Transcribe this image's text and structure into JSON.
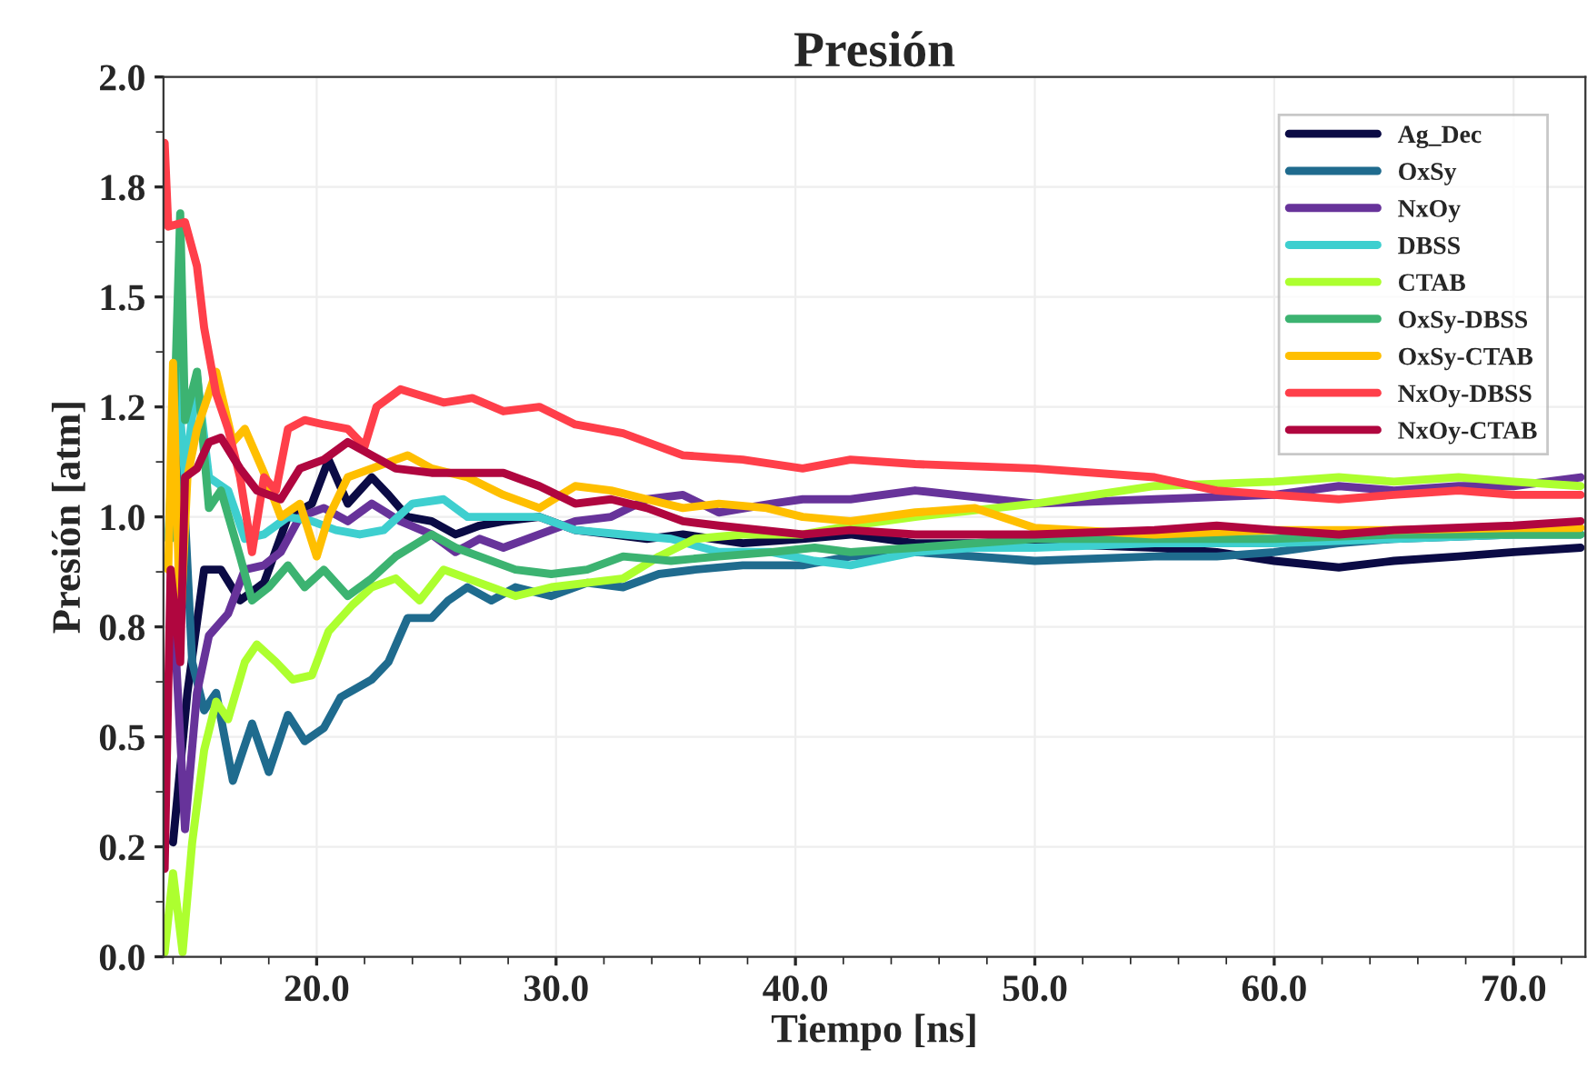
{
  "chart_data": {
    "type": "line",
    "title": "Presión",
    "xlabel": "Tiempo [ns]",
    "ylabel": "Presión [atm]",
    "xlim": [
      13.6,
      73.0
    ],
    "xticks": [
      {
        "value": 20,
        "label": "20.0"
      },
      {
        "value": 30,
        "label": "30.0"
      },
      {
        "value": 40,
        "label": "40.0"
      },
      {
        "value": 50,
        "label": "50.0"
      },
      {
        "value": 60,
        "label": "60.0"
      },
      {
        "value": 70,
        "label": "70.0"
      }
    ],
    "ylim": [
      0,
      2.0
    ],
    "yticks": [
      {
        "value": 0,
        "label": "0.0"
      },
      {
        "value": 0.25,
        "label": "0.2"
      },
      {
        "value": 0.5,
        "label": "0.5"
      },
      {
        "value": 0.75,
        "label": "0.8"
      },
      {
        "value": 1.0,
        "label": "1.0"
      },
      {
        "value": 1.25,
        "label": "1.2"
      },
      {
        "value": 1.5,
        "label": "1.5"
      },
      {
        "value": 1.75,
        "label": "1.8"
      },
      {
        "value": 2.0,
        "label": "2.0"
      }
    ],
    "grid": true,
    "legend": "top right",
    "series": [
      {
        "name": "Ag_Dec",
        "color": "#0b0b45",
        "x": [
          14.0,
          14.6,
          15.3,
          16.0,
          16.8,
          17.8,
          18.8,
          19.8,
          20.5,
          21.3,
          22.3,
          23.0,
          23.8,
          24.8,
          25.8,
          26.8,
          27.8,
          29.3,
          30.8,
          32.3,
          33.8,
          35.3,
          37.8,
          40.3,
          42.3,
          45,
          50,
          55,
          57.6,
          60,
          62.7,
          65,
          67.7,
          70,
          72.8
        ],
        "values": [
          0.26,
          0.6,
          0.88,
          0.88,
          0.81,
          0.85,
          1.0,
          1.03,
          1.13,
          1.03,
          1.09,
          1.05,
          1.0,
          0.99,
          0.96,
          0.98,
          0.99,
          1.0,
          0.97,
          0.96,
          0.95,
          0.96,
          0.94,
          0.95,
          0.96,
          0.94,
          0.94,
          0.93,
          0.92,
          0.9,
          0.885,
          0.9,
          0.91,
          0.92,
          0.93
        ]
      },
      {
        "name": "OxSy",
        "color": "#1f6b8e",
        "x": [
          13.8,
          14.3,
          14.8,
          15.3,
          15.8,
          16.5,
          17.3,
          18.0,
          18.8,
          19.5,
          20.3,
          21.0,
          22.3,
          23.0,
          23.8,
          24.8,
          25.5,
          26.3,
          27.3,
          28.3,
          29.8,
          31.3,
          32.8,
          34.3,
          35.8,
          37.8,
          40.3,
          42.3,
          45,
          50,
          55,
          57.6,
          60,
          62.7,
          65,
          70,
          72.8
        ],
        "values": [
          0.95,
          1.22,
          0.67,
          0.56,
          0.6,
          0.4,
          0.53,
          0.42,
          0.55,
          0.49,
          0.52,
          0.59,
          0.63,
          0.67,
          0.77,
          0.77,
          0.81,
          0.84,
          0.81,
          0.84,
          0.82,
          0.85,
          0.84,
          0.87,
          0.88,
          0.89,
          0.89,
          0.91,
          0.92,
          0.9,
          0.91,
          0.91,
          0.92,
          0.94,
          0.95,
          0.96,
          0.96
        ]
      },
      {
        "name": "NxOy",
        "color": "#67339a",
        "x": [
          14.0,
          14.5,
          15.0,
          15.5,
          16.3,
          17.0,
          17.8,
          18.5,
          19.3,
          20.3,
          21.3,
          22.3,
          23.5,
          24.8,
          25.8,
          26.8,
          27.8,
          29.3,
          30.8,
          32.3,
          33.8,
          35.3,
          36.8,
          39.0,
          40.3,
          42.3,
          45,
          50,
          55,
          60,
          62.7,
          65,
          67.7,
          70,
          72.8
        ],
        "values": [
          0.81,
          0.29,
          0.6,
          0.73,
          0.78,
          0.88,
          0.89,
          0.92,
          1.0,
          1.02,
          0.99,
          1.03,
          0.99,
          0.96,
          0.92,
          0.95,
          0.93,
          0.96,
          0.99,
          1.0,
          1.04,
          1.05,
          1.01,
          1.03,
          1.04,
          1.04,
          1.06,
          1.03,
          1.04,
          1.05,
          1.07,
          1.06,
          1.07,
          1.07,
          1.09
        ]
      },
      {
        "name": "DBSS",
        "color": "#3ecfcf",
        "x": [
          13.8,
          14.15,
          14.5,
          15.0,
          15.5,
          16.3,
          17.0,
          17.8,
          18.8,
          19.8,
          20.8,
          21.8,
          22.8,
          24.0,
          25.3,
          26.3,
          27.8,
          29.3,
          30.8,
          32.8,
          34.8,
          36.8,
          39.0,
          40.8,
          42.3,
          45,
          47.5,
          50,
          55,
          60,
          65,
          70,
          72.8
        ],
        "values": [
          0.95,
          1.33,
          1.09,
          1.32,
          1.09,
          1.06,
          0.95,
          0.96,
          1.0,
          0.99,
          0.97,
          0.96,
          0.97,
          1.03,
          1.04,
          1.0,
          1.0,
          1.0,
          0.97,
          0.96,
          0.95,
          0.92,
          0.92,
          0.9,
          0.89,
          0.92,
          0.93,
          0.93,
          0.94,
          0.94,
          0.95,
          0.96,
          0.96
        ]
      },
      {
        "name": "CTAB",
        "color": "#adff2f",
        "x": [
          13.65,
          14.0,
          14.4,
          14.8,
          15.3,
          15.8,
          16.3,
          17.0,
          17.5,
          18.3,
          19.0,
          19.8,
          20.5,
          21.5,
          22.3,
          23.3,
          24.3,
          25.3,
          26.3,
          27.3,
          28.3,
          29.8,
          31.3,
          32.8,
          34.3,
          35.8,
          37.8,
          40.3,
          42.3,
          45,
          50,
          55,
          60,
          62.7,
          65,
          67.7,
          70,
          72.8
        ],
        "values": [
          0.01,
          0.19,
          0.01,
          0.26,
          0.47,
          0.58,
          0.54,
          0.67,
          0.71,
          0.67,
          0.63,
          0.64,
          0.74,
          0.8,
          0.84,
          0.86,
          0.81,
          0.88,
          0.86,
          0.84,
          0.82,
          0.84,
          0.85,
          0.86,
          0.91,
          0.95,
          0.96,
          0.96,
          0.98,
          1.0,
          1.03,
          1.07,
          1.08,
          1.09,
          1.08,
          1.09,
          1.08,
          1.07
        ]
      },
      {
        "name": "OxSy-DBSS",
        "color": "#3cb371",
        "x": [
          13.9,
          14.3,
          14.5,
          15.0,
          15.5,
          16.0,
          16.8,
          17.3,
          18.0,
          18.8,
          19.5,
          20.3,
          21.3,
          22.3,
          23.3,
          24.8,
          25.8,
          26.8,
          28.3,
          29.8,
          31.3,
          32.8,
          34.8,
          36.8,
          39.0,
          40.8,
          42.3,
          45,
          50,
          55,
          57.6,
          60,
          65,
          70,
          72.8
        ],
        "values": [
          0.95,
          1.69,
          1.22,
          1.33,
          1.02,
          1.06,
          0.91,
          0.81,
          0.84,
          0.89,
          0.84,
          0.88,
          0.82,
          0.86,
          0.91,
          0.96,
          0.93,
          0.91,
          0.88,
          0.87,
          0.88,
          0.91,
          0.9,
          0.91,
          0.92,
          0.93,
          0.92,
          0.93,
          0.95,
          0.95,
          0.95,
          0.95,
          0.96,
          0.96,
          0.96
        ]
      },
      {
        "name": "OxSy-CTAB",
        "color": "#ffbf00",
        "x": [
          13.8,
          14.0,
          14.3,
          14.6,
          15.0,
          15.8,
          16.5,
          17.0,
          17.8,
          18.5,
          19.3,
          20.0,
          20.5,
          21.3,
          22.3,
          23.8,
          24.8,
          26.3,
          27.8,
          29.3,
          30.8,
          32.3,
          33.8,
          35.3,
          36.8,
          38.8,
          40.3,
          42.3,
          45,
          47.5,
          50,
          55,
          60,
          62.7,
          65,
          70,
          72.8
        ],
        "values": [
          0.88,
          1.35,
          0.74,
          1.09,
          1.2,
          1.33,
          1.17,
          1.2,
          1.1,
          1.0,
          1.03,
          0.91,
          1.0,
          1.09,
          1.11,
          1.14,
          1.11,
          1.09,
          1.05,
          1.02,
          1.07,
          1.06,
          1.04,
          1.02,
          1.03,
          1.02,
          1.0,
          0.99,
          1.01,
          1.02,
          0.975,
          0.96,
          0.97,
          0.97,
          0.97,
          0.975,
          0.975
        ]
      },
      {
        "name": "NxOy-DBSS",
        "color": "#ff3f4a",
        "x": [
          13.65,
          13.8,
          14.5,
          15.0,
          15.3,
          15.8,
          16.3,
          16.8,
          17.3,
          17.8,
          18.3,
          18.8,
          19.5,
          20.3,
          21.3,
          22.0,
          22.5,
          23.5,
          25.3,
          26.5,
          27.8,
          29.3,
          30.8,
          32.8,
          35.3,
          37.8,
          40.3,
          42.3,
          45,
          50,
          55,
          57.6,
          60,
          62.7,
          65,
          67.7,
          70,
          72.8
        ],
        "values": [
          1.85,
          1.66,
          1.67,
          1.57,
          1.43,
          1.28,
          1.2,
          1.09,
          0.92,
          1.09,
          1.06,
          1.2,
          1.22,
          1.21,
          1.2,
          1.16,
          1.25,
          1.29,
          1.26,
          1.27,
          1.24,
          1.25,
          1.21,
          1.19,
          1.14,
          1.13,
          1.11,
          1.13,
          1.12,
          1.11,
          1.09,
          1.06,
          1.05,
          1.04,
          1.05,
          1.06,
          1.05,
          1.05
        ]
      },
      {
        "name": "NxOy-CTAB",
        "color": "#b0063f",
        "x": [
          13.65,
          13.9,
          14.3,
          14.5,
          15.0,
          15.5,
          16.0,
          16.8,
          17.5,
          18.5,
          19.3,
          20.3,
          21.3,
          22.3,
          23.3,
          24.8,
          26.3,
          27.8,
          29.3,
          30.8,
          32.3,
          33.8,
          35.3,
          36.8,
          40.3,
          42.3,
          45,
          50,
          55,
          57.6,
          60,
          62.7,
          65,
          70,
          72.8
        ],
        "values": [
          0.2,
          0.88,
          0.67,
          1.09,
          1.11,
          1.17,
          1.18,
          1.11,
          1.06,
          1.04,
          1.11,
          1.13,
          1.17,
          1.14,
          1.11,
          1.1,
          1.1,
          1.1,
          1.07,
          1.03,
          1.04,
          1.02,
          0.99,
          0.98,
          0.96,
          0.97,
          0.96,
          0.96,
          0.97,
          0.98,
          0.97,
          0.96,
          0.97,
          0.98,
          0.99
        ]
      }
    ]
  }
}
